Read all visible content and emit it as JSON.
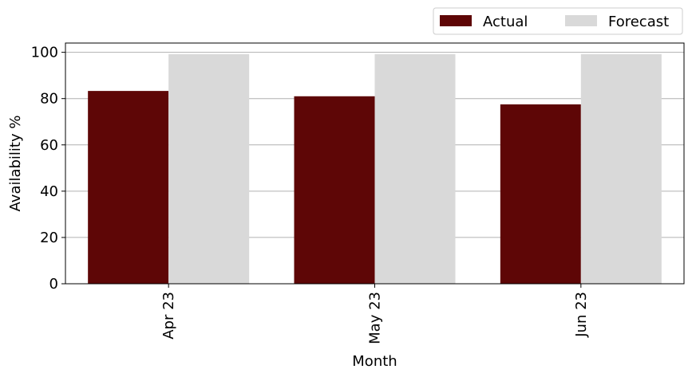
{
  "chart_data": {
    "type": "bar",
    "title": "",
    "xlabel": "Month",
    "ylabel": "Availability %",
    "categories": [
      "Apr 23",
      "May 23",
      "Jun 23"
    ],
    "series": [
      {
        "name": "Actual",
        "color": "#5e0606",
        "values": [
          83.3,
          81.0,
          77.5
        ]
      },
      {
        "name": "Forecast",
        "color": "#d9d9d9",
        "values": [
          99.2,
          99.2,
          99.2
        ]
      }
    ],
    "ylim": [
      0,
      104
    ],
    "yticks": [
      0,
      20,
      40,
      60,
      80,
      100
    ],
    "grid": "y",
    "legend": "top-right"
  }
}
